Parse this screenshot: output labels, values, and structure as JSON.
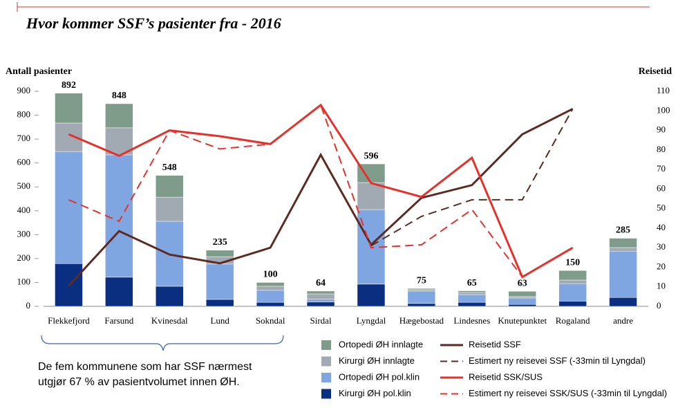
{
  "chart_data": {
    "type": "bar_line",
    "title": "Hvor kommer SSF’s pasienter fra - 2016",
    "y_label": "Antall pasienter",
    "y2_label": "Reisetid",
    "annotation": [
      "De fem kommunene som har SSF nærmest",
      "utgjør 67 % av pasientvolumet innen ØH."
    ],
    "categories": [
      "Flekkefjord",
      "Farsund",
      "Kvinesdal",
      "Lund",
      "Sokndal",
      "Sirdal",
      "Lyngdal",
      "Hægebostad",
      "Lindesnes",
      "Knutepunktet",
      "Rogaland",
      "andre"
    ],
    "ylim": [
      0,
      900
    ],
    "yticks": [
      0,
      100,
      200,
      300,
      400,
      500,
      600,
      700,
      800,
      900
    ],
    "y2lim": [
      0,
      110
    ],
    "y2ticks": [
      0,
      10,
      20,
      30,
      40,
      50,
      60,
      70,
      80,
      90,
      100,
      110
    ],
    "total_labels": [
      892,
      848,
      548,
      235,
      100,
      64,
      596,
      75,
      65,
      63,
      150,
      285
    ],
    "series": [
      {
        "name": "Kirurgi ØH pol.klin",
        "type": "bar",
        "color": "#0b2f80",
        "values": [
          179,
          122,
          84,
          29,
          17,
          18,
          93,
          12,
          17,
          8,
          22,
          37
        ]
      },
      {
        "name": "Ortopedi ØH pol.klin",
        "type": "bar",
        "color": "#80a6e2",
        "values": [
          469,
          512,
          272,
          148,
          50,
          12,
          312,
          52,
          32,
          27,
          73,
          194
        ]
      },
      {
        "name": "Kirurgi ØH innlagte",
        "type": "bar",
        "color": "#a1a9b2",
        "values": [
          119,
          113,
          101,
          31,
          17,
          22,
          113,
          6,
          9,
          6,
          15,
          15
        ]
      },
      {
        "name": "Ortopedi ØH innlagte",
        "type": "bar",
        "color": "#7f9c8a",
        "values": [
          125,
          101,
          91,
          27,
          16,
          12,
          78,
          5,
          7,
          22,
          40,
          39
        ]
      },
      {
        "name": "Reisetid SSF",
        "type": "line",
        "axis": "y2",
        "color": "#5c2a20",
        "dashed": false,
        "values": [
          10.5,
          38.5,
          26.5,
          22,
          30,
          77.5,
          31.5,
          55.5,
          62,
          88,
          101,
          null
        ]
      },
      {
        "name": "Estimert ny reisevei SSF (-33min til Lyngdal)",
        "type": "line",
        "axis": "y2",
        "color": "#5c2a20",
        "dashed": true,
        "values": [
          null,
          null,
          null,
          null,
          null,
          null,
          31,
          46,
          54.5,
          54.5,
          101,
          null
        ]
      },
      {
        "name": "Reisetid SSK/SUS",
        "type": "line",
        "axis": "y2",
        "color": "#e8302a",
        "dashed": false,
        "values": [
          88,
          77,
          90,
          87,
          83,
          103,
          63,
          56,
          76,
          15,
          30,
          null
        ]
      },
      {
        "name": "Estimert ny reisevei SSK/SUS (-33min til Lyngdal)",
        "type": "line",
        "axis": "y2",
        "color": "#e8302a",
        "dashed": true,
        "values": [
          54.5,
          43.5,
          90,
          80.5,
          83,
          103,
          30,
          31.5,
          49.5,
          15,
          30,
          null
        ]
      }
    ]
  }
}
